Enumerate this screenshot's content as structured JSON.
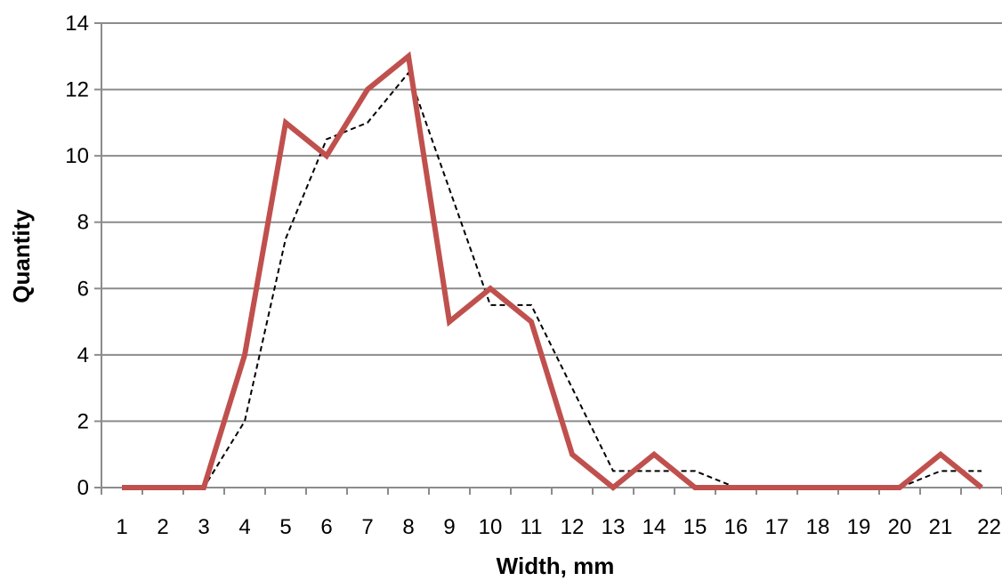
{
  "chart_data": {
    "type": "line",
    "title": "",
    "xlabel": "Width, mm",
    "ylabel": "Quantity",
    "x": [
      1,
      2,
      3,
      4,
      5,
      6,
      7,
      8,
      9,
      10,
      11,
      12,
      13,
      14,
      15,
      16,
      17,
      18,
      19,
      20,
      21,
      22
    ],
    "xticks": [
      "1",
      "2",
      "3",
      "4",
      "5",
      "6",
      "7",
      "8",
      "9",
      "10",
      "11",
      "12",
      "13",
      "14",
      "15",
      "16",
      "17",
      "18",
      "19",
      "20",
      "21",
      "22"
    ],
    "ylim": [
      0,
      14
    ],
    "yticks": [
      0,
      2,
      4,
      6,
      8,
      10,
      12,
      14
    ],
    "grid": true,
    "series": [
      {
        "style": "solid",
        "color": "#c0504d",
        "values": [
          0,
          0,
          0,
          4,
          11,
          10,
          12,
          13,
          5,
          6,
          5,
          1,
          0,
          1,
          0,
          0,
          0,
          0,
          0,
          0,
          1,
          0
        ]
      },
      {
        "style": "dashed",
        "color": "#000000",
        "values": [
          0,
          0,
          0,
          2,
          7.5,
          10.5,
          11,
          12.5,
          9,
          5.5,
          5.5,
          3,
          0.5,
          0.5,
          0.5,
          0,
          0,
          0,
          0,
          0,
          0.5,
          0.5
        ]
      }
    ]
  }
}
